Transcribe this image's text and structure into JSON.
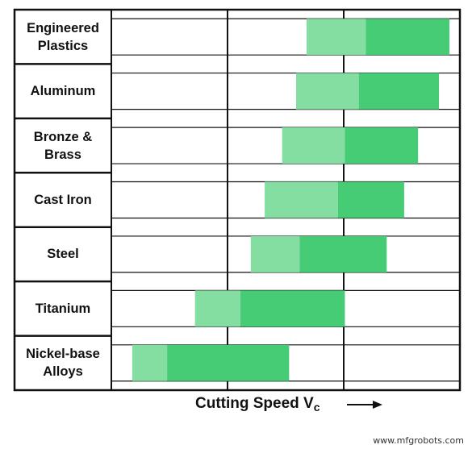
{
  "chart_data": {
    "type": "bar",
    "subtype": "floating-range",
    "xlabel": "Cutting Speed V",
    "xlabel_subscript": "c",
    "xlim": [
      0,
      100
    ],
    "x_gridlines": [
      33.33,
      66.67
    ],
    "y_gridlines": "two per row",
    "categories": [
      "Engineered\nPlastics",
      "Aluminum",
      "Bronze &\nBrass",
      "Cast Iron",
      "Steel",
      "Titanium",
      "Nickel-base\nAlloys"
    ],
    "series": [
      {
        "name": "",
        "color": "#85dea1",
        "ranges": [
          [
            56,
            73
          ],
          [
            53,
            71
          ],
          [
            49,
            67
          ],
          [
            44,
            65
          ],
          [
            40,
            54
          ],
          [
            24,
            37
          ],
          [
            6,
            16
          ]
        ]
      },
      {
        "name": "",
        "color": "#45cc74",
        "ranges": [
          [
            73,
            97
          ],
          [
            71,
            94
          ],
          [
            67,
            88
          ],
          [
            65,
            84
          ],
          [
            54,
            79
          ],
          [
            37,
            67
          ],
          [
            16,
            51
          ]
        ]
      }
    ]
  },
  "watermark": "www.mfgrobots.com"
}
